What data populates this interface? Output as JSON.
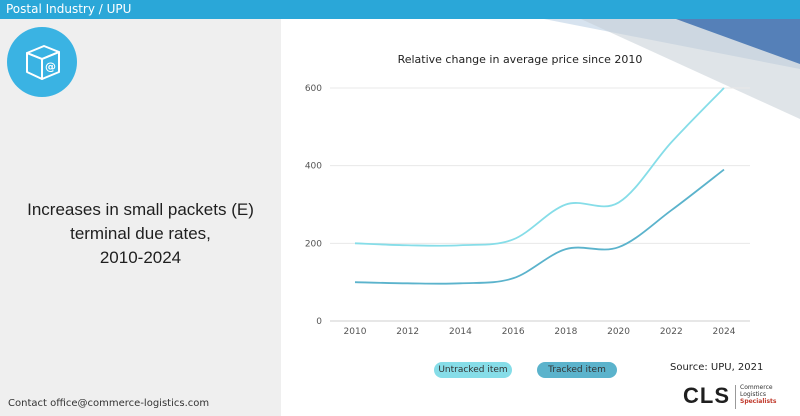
{
  "header": {
    "title": "Postal Industry / UPU"
  },
  "logo": {
    "icon": "package-at-icon"
  },
  "main": {
    "heading_lines": [
      "Increases in small packets (E)",
      "terminal due rates,",
      "2010-2024"
    ]
  },
  "footer": {
    "contact": "Contact office@commerce-logistics.com",
    "source": "Source: UPU, 2021"
  },
  "brand": {
    "name": "CLS",
    "tagline_lines": [
      "Commerce",
      "Logistics",
      "Specialists"
    ]
  },
  "colors": {
    "header_bar": "#2aa7d8",
    "untracked": "#86dde8",
    "tracked": "#5bb3cc",
    "accent_triangle": "#5580b8"
  },
  "chart_data": {
    "type": "line",
    "title": "Relative change in average price since 2010",
    "xlabel": "",
    "ylabel": "",
    "x": [
      2010,
      2012,
      2014,
      2016,
      2018,
      2020,
      2022,
      2024
    ],
    "ylim": [
      0,
      600
    ],
    "yticks": [
      0,
      200,
      400,
      600
    ],
    "grid": true,
    "legend_position": "bottom",
    "series": [
      {
        "name": "Untracked item",
        "color": "#86dde8",
        "values": [
          200,
          195,
          195,
          210,
          300,
          305,
          460,
          600
        ]
      },
      {
        "name": "Tracked item",
        "color": "#5bb3cc",
        "values": [
          100,
          97,
          97,
          110,
          185,
          190,
          285,
          390
        ]
      }
    ]
  }
}
